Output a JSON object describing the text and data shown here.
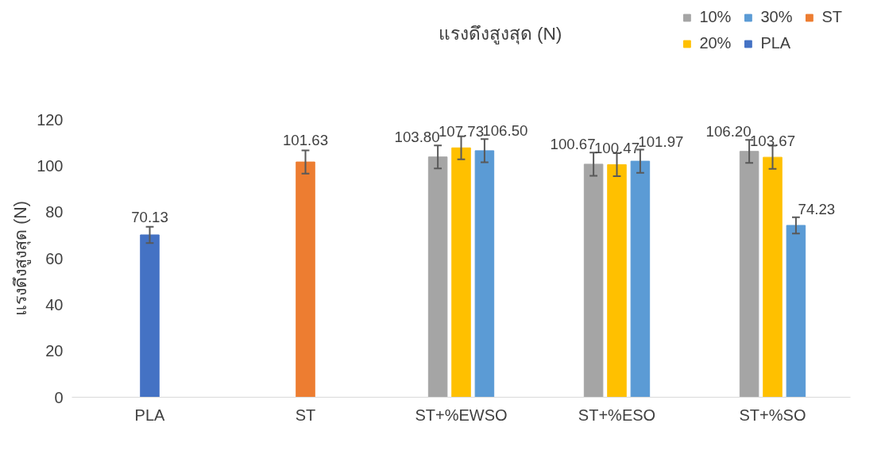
{
  "chart_data": {
    "type": "bar",
    "title": "แรงดึงสูงสุด (N)",
    "ylabel": "แรงดึงสูงสุด (N)",
    "categories": [
      "PLA",
      "ST",
      "ST+%EWSO",
      "ST+%ESO",
      "ST+%SO"
    ],
    "series": [
      {
        "name": "10%",
        "color": "#a5a5a5",
        "values": [
          null,
          null,
          103.8,
          100.67,
          106.2
        ],
        "errors": [
          null,
          null,
          5,
          5,
          5
        ],
        "value_labels": [
          null,
          null,
          "103.80",
          "100.67",
          "106.20"
        ]
      },
      {
        "name": "20%",
        "color": "#ffc000",
        "values": [
          null,
          null,
          107.73,
          100.47,
          103.67
        ],
        "errors": [
          null,
          null,
          5,
          5,
          5
        ],
        "value_labels": [
          null,
          null,
          "107.73",
          "100.47",
          "103.67"
        ]
      },
      {
        "name": "30%",
        "color": "#5b9bd5",
        "values": [
          null,
          null,
          106.5,
          101.97,
          74.23
        ],
        "errors": [
          null,
          null,
          5,
          5,
          3.5
        ],
        "value_labels": [
          null,
          null,
          "106.50",
          "101.97",
          "74.23"
        ]
      },
      {
        "name": "PLA",
        "color": "#4472c4",
        "values": [
          70.13,
          null,
          null,
          null,
          null
        ],
        "errors": [
          3.5,
          null,
          null,
          null,
          null
        ],
        "value_labels": [
          "70.13",
          null,
          null,
          null,
          null
        ]
      },
      {
        "name": "ST",
        "color": "#ed7d31",
        "values": [
          null,
          101.63,
          null,
          null,
          null
        ],
        "errors": [
          null,
          5,
          null,
          null,
          null
        ],
        "value_labels": [
          null,
          "101.63",
          null,
          null,
          null
        ]
      }
    ],
    "ylim": [
      0,
      120
    ],
    "yticks": [
      0,
      20,
      40,
      60,
      80,
      100,
      120
    ],
    "legend": "top right"
  }
}
